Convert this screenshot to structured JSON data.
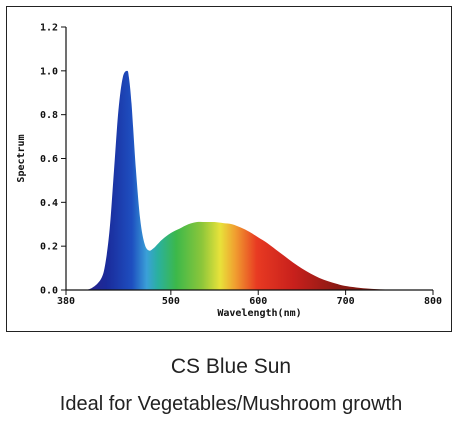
{
  "chart_data": {
    "type": "area",
    "title": "",
    "xlabel": "Wavelength(nm)",
    "ylabel": "Spectrum",
    "xlim": [
      380,
      800
    ],
    "ylim": [
      0,
      1.2
    ],
    "x_ticks": [
      "380",
      "500",
      "600",
      "700",
      "800"
    ],
    "y_ticks": [
      "0.0",
      "0.2",
      "0.4",
      "0.6",
      "0.8",
      "1.0",
      "1.2"
    ],
    "series": [
      {
        "x": [
          380,
          400,
          410,
          420,
          425,
          430,
          435,
          440,
          445,
          450,
          452,
          455,
          460,
          465,
          470,
          475,
          480,
          485,
          490,
          500,
          510,
          520,
          530,
          540,
          550,
          560,
          570,
          580,
          590,
          600,
          610,
          620,
          630,
          640,
          650,
          660,
          670,
          680,
          690,
          700,
          720,
          740,
          760,
          780,
          800
        ],
        "y": [
          0.0,
          0.0,
          0.01,
          0.05,
          0.12,
          0.28,
          0.55,
          0.82,
          0.97,
          1.0,
          0.97,
          0.85,
          0.55,
          0.32,
          0.21,
          0.18,
          0.19,
          0.21,
          0.23,
          0.26,
          0.28,
          0.3,
          0.31,
          0.31,
          0.31,
          0.305,
          0.3,
          0.285,
          0.265,
          0.24,
          0.215,
          0.185,
          0.155,
          0.125,
          0.098,
          0.075,
          0.055,
          0.04,
          0.028,
          0.018,
          0.008,
          0.003,
          0.001,
          0.0,
          0.0
        ]
      }
    ]
  },
  "captions": {
    "line1": "CS Blue Sun",
    "line2": "Ideal for Vegetables/Mushroom growth"
  }
}
